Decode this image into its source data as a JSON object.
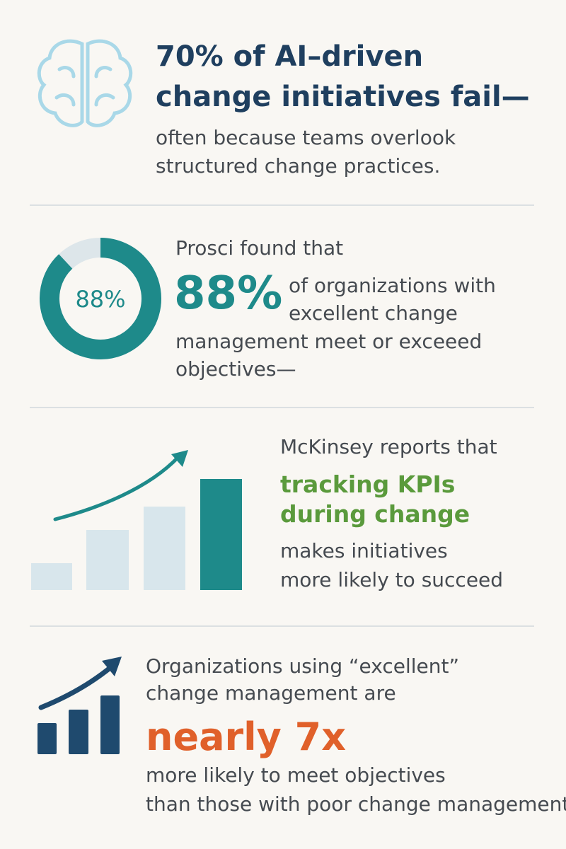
{
  "sections": [
    {
      "title": [
        "70% of AI–driven",
        "change initiatives fail—"
      ],
      "subtitle": [
        "often because teams overlook",
        "structured change practices."
      ]
    },
    {
      "intro": "Prosci found that",
      "donut": {
        "value": 88,
        "label": "88%"
      },
      "big": "88%",
      "body": [
        "of organizations with",
        "excellent change",
        "management meet or exceeed",
        "objectives—"
      ]
    },
    {
      "intro": "McKinsey reports that",
      "highlight": [
        "tracking KPIs",
        "during change"
      ],
      "body": [
        "makes initiatives",
        "more likely to succeed"
      ]
    },
    {
      "intro": [
        "Organizations using “excellent”",
        "change management are"
      ],
      "highlight": "nearly 7x",
      "body": [
        "more likely to meet objectives",
        "than those with poor change management"
      ]
    }
  ]
}
